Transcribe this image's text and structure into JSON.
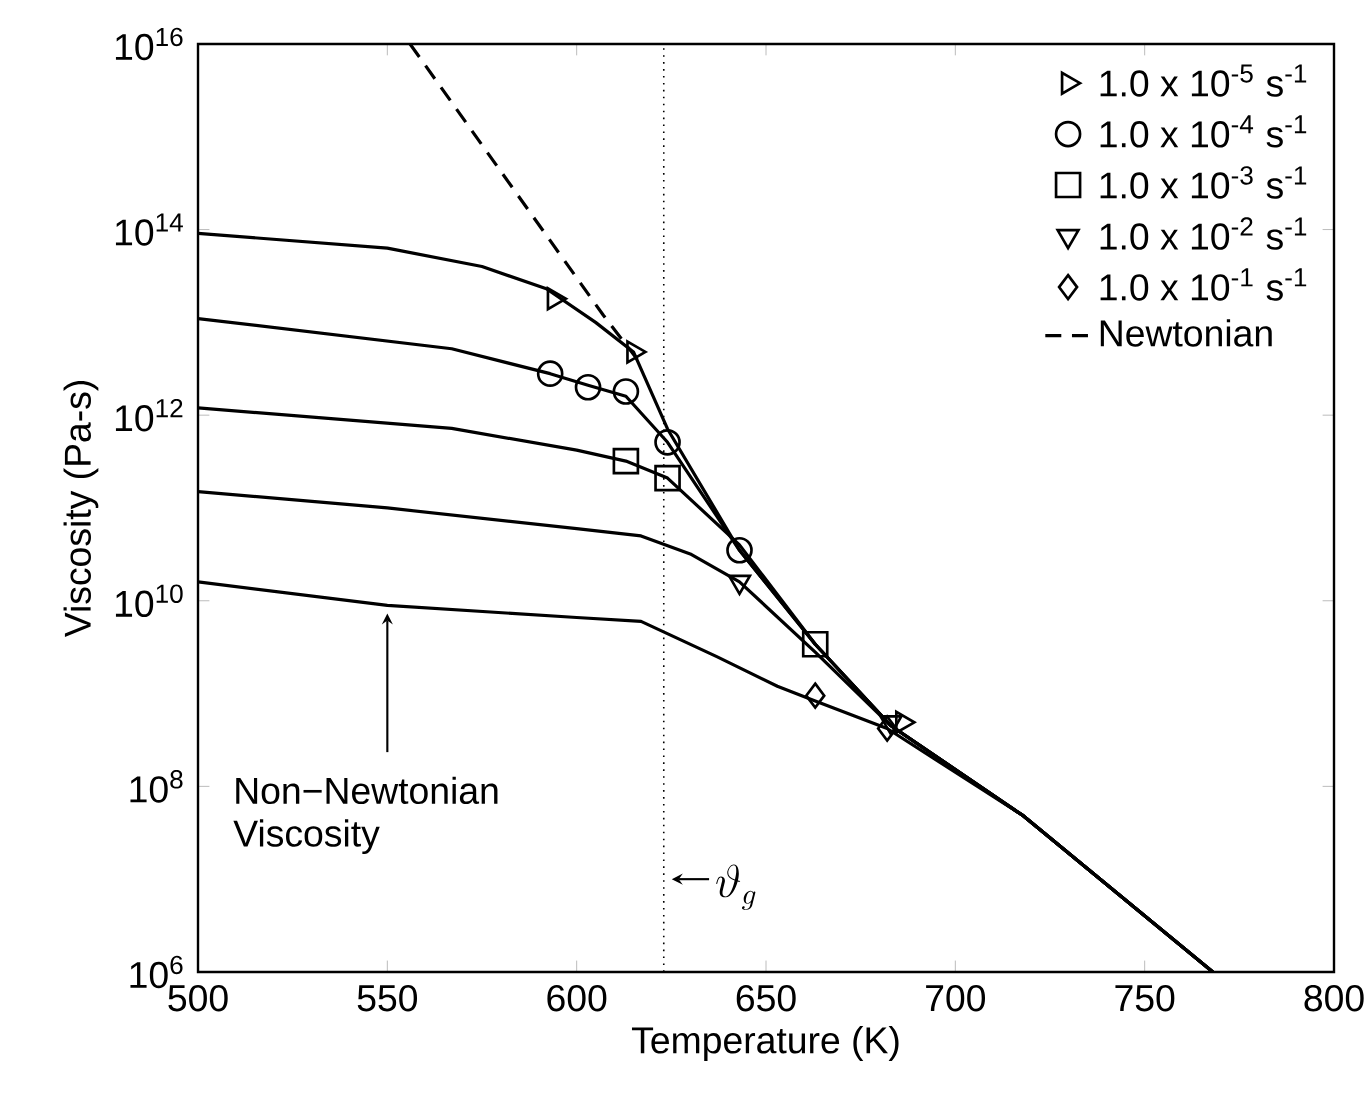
{
  "chart_data": {
    "type": "line",
    "xlabel": "Temperature (K)",
    "ylabel": "Viscosity (Pa-s)",
    "log": "y",
    "grid": false,
    "legend": "top right",
    "xlim": [
      500,
      800
    ],
    "ylim": [
      1000000.0,
      1e+16
    ],
    "xticks": [
      500,
      550,
      600,
      650,
      700,
      750,
      800
    ],
    "yticks": [
      {
        "value": 1000000.0,
        "label": "10$^{6}$"
      },
      {
        "value": 100000000.0,
        "label": "10$^{8}$"
      },
      {
        "value": 10000000000.0,
        "label": "10$^{10}$"
      },
      {
        "value": 1000000000000.0,
        "label": "10$^{12}$"
      },
      {
        "value": 100000000000000.0,
        "label": "10$^{14}$"
      },
      {
        "value": 1e+16,
        "label": "10$^{16}$"
      }
    ],
    "series": [
      {
        "type": "line",
        "color": "#000000",
        "line_style": "solid",
        "x": [
          500,
          550,
          575,
          592,
          605,
          615,
          624,
          643,
          663,
          683,
          718,
          768
        ],
        "values": [
          91000000000000.0,
          63000000000000.0,
          40000000000000.0,
          23000000000000.0,
          10000000000000.0,
          4800000000000.0,
          710000000000.0,
          35000000000.0,
          3400000000.0,
          450000000.0,
          48000000.0,
          1000000.0
        ]
      },
      {
        "type": "line",
        "color": "#000000",
        "line_style": "solid",
        "x": [
          500,
          567,
          593,
          603,
          613,
          624,
          643,
          663,
          683,
          718,
          768
        ],
        "values": [
          11000000000000.0,
          5200000000000.0,
          2800000000000.0,
          2100000000000.0,
          1600000000000.0,
          510000000000.0,
          35000000000.0,
          3400000000.0,
          450000000.0,
          48000000.0,
          1000000.0
        ]
      },
      {
        "type": "line",
        "color": "#000000",
        "line_style": "solid",
        "x": [
          500,
          567,
          600,
          613,
          624,
          643,
          663,
          683,
          718,
          768
        ],
        "values": [
          1200000000000.0,
          720000000000.0,
          420000000000.0,
          320000000000.0,
          210000000000.0,
          40000000000.0,
          3400000000.0,
          450000000.0,
          48000000.0,
          1000000.0
        ]
      },
      {
        "type": "line",
        "color": "#000000",
        "line_style": "solid",
        "x": [
          500,
          550,
          600,
          617,
          630,
          643,
          663,
          683,
          718,
          768
        ],
        "values": [
          150000000000.0,
          100000000000.0,
          60000000000.0,
          50000000000.0,
          32000000000.0,
          16000000000.0,
          2800000000.0,
          450000000.0,
          48000000.0,
          1000000.0
        ]
      },
      {
        "type": "line",
        "color": "#000000",
        "line_style": "solid",
        "x": [
          500,
          550,
          600,
          617,
          637,
          653,
          663,
          682,
          718,
          768
        ],
        "values": [
          16000000000.0,
          8900000000.0,
          6600000000.0,
          6000000000.0,
          2500000000.0,
          1200000000.0,
          830000000.0,
          420000000.0,
          48000000.0,
          1000000.0
        ]
      },
      {
        "type": "scatter",
        "name": "1.0 x 10$^{-5}$ s$^{-1}$",
        "marker": "triangle-right",
        "color": "#000000",
        "x": [
          594,
          615,
          686
        ],
        "values": [
          18000000000000.0,
          4800000000000.0,
          490000000.0
        ]
      },
      {
        "type": "scatter",
        "name": "1.0 x 10$^{-4}$ s$^{-1}$",
        "marker": "circle",
        "color": "#000000",
        "x": [
          593,
          603,
          613,
          624,
          643
        ],
        "values": [
          2800000000000.0,
          2000000000000.0,
          1800000000000.0,
          510000000000.0,
          35000000000.0
        ]
      },
      {
        "type": "scatter",
        "name": "1.0 x 10$^{-3}$ s$^{-1}$",
        "marker": "square",
        "color": "#000000",
        "x": [
          613,
          624,
          663
        ],
        "values": [
          320000000000.0,
          210000000000.0,
          3400000000.0
        ]
      },
      {
        "type": "scatter",
        "name": "1.0 x 10$^{-2}$ s$^{-1}$",
        "marker": "triangle-down",
        "color": "#000000",
        "x": [
          643,
          683
        ],
        "values": [
          16000000000.0,
          490000000.0
        ]
      },
      {
        "type": "scatter",
        "name": "1.0 x 10$^{-1}$ s$^{-1}$",
        "marker": "diamond",
        "color": "#000000",
        "x": [
          663,
          682
        ],
        "values": [
          950000000.0,
          420000000.0
        ]
      },
      {
        "type": "line",
        "name": "Newtonian",
        "color": "#000000",
        "line_style": "dashed",
        "x": [
          556,
          607,
          616
        ],
        "values": [
          1e+16,
          12000000000000.0,
          4000000000000.0
        ]
      }
    ],
    "ref_lines": [
      {
        "axis": "x",
        "value": 623,
        "label": "\\vartheta_g",
        "line_style": "dotted",
        "color": "#000000"
      }
    ],
    "annotations": [
      {
        "text": "Non−Newtonian Viscosity",
        "x": 550,
        "y": 8900000000.0
      }
    ]
  }
}
